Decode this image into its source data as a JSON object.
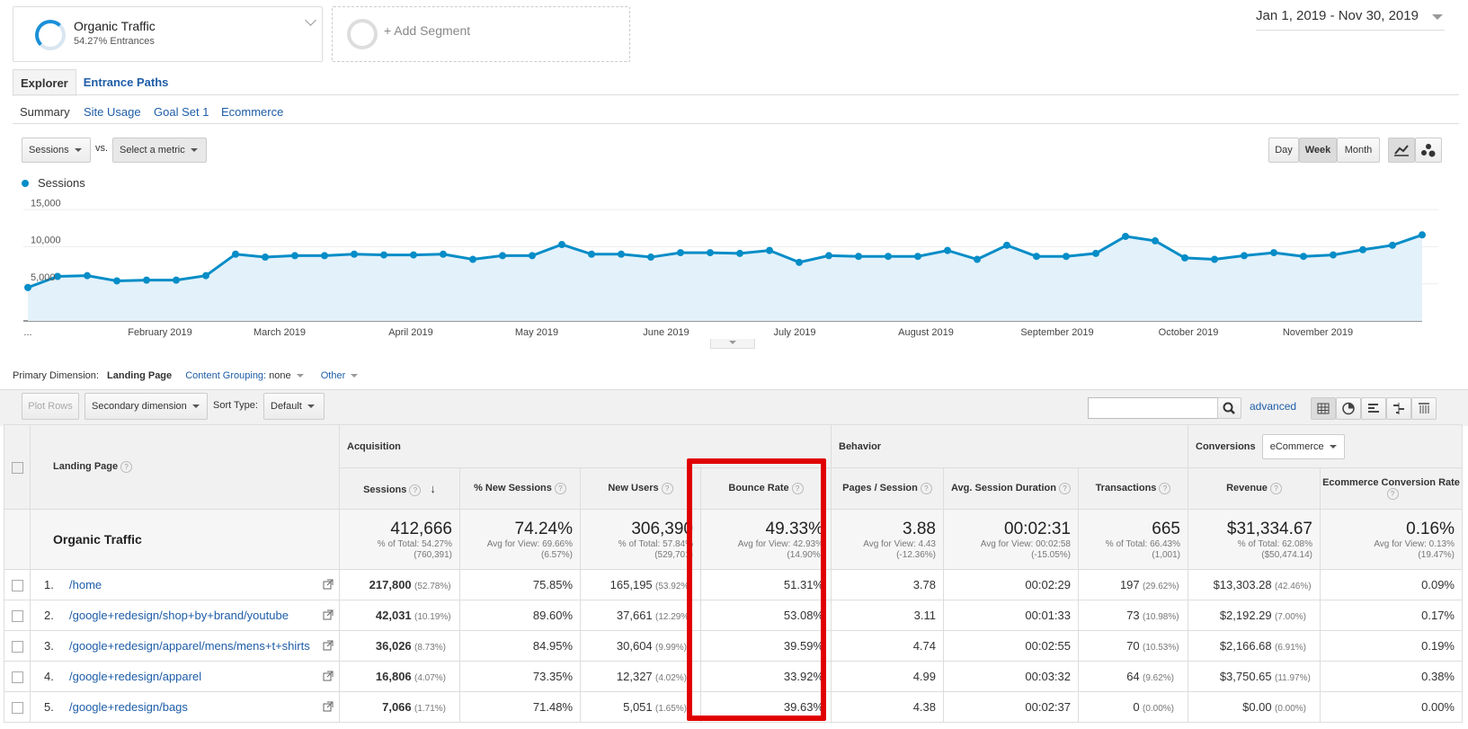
{
  "segments": {
    "primary": {
      "name": "Organic Traffic",
      "sub": "54.27% Entrances"
    },
    "add_label": "+ Add Segment"
  },
  "date_range": "Jan 1, 2019 - Nov 30, 2019",
  "tabs": [
    "Explorer",
    "Entrance Paths"
  ],
  "subtabs": [
    "Summary",
    "Site Usage",
    "Goal Set 1",
    "Ecommerce"
  ],
  "metric_select": {
    "primary": "Sessions",
    "vs": "vs.",
    "secondary": "Select a metric"
  },
  "granularity": [
    "Day",
    "Week",
    "Month"
  ],
  "chart_data": {
    "type": "area",
    "series": [
      {
        "name": "Sessions",
        "values": [
          4500,
          6000,
          6100,
          5400,
          5500,
          5500,
          6100,
          9000,
          8600,
          8800,
          8800,
          9000,
          8900,
          8900,
          9000,
          8300,
          8800,
          8800,
          10300,
          9000,
          9000,
          8600,
          9200,
          9200,
          9100,
          9500,
          7900,
          8800,
          8700,
          8700,
          8700,
          9500,
          8300,
          10200,
          8700,
          8700,
          9100,
          11400,
          10800,
          8500,
          8300,
          8800,
          9200,
          8700,
          8900,
          9600,
          10200,
          11600
        ]
      }
    ],
    "x_labels": [
      "...",
      "February 2019",
      "March 2019",
      "April 2019",
      "May 2019",
      "June 2019",
      "July 2019",
      "August 2019",
      "September 2019",
      "October 2019",
      "November 2019"
    ],
    "y_ticks": [
      "15,000",
      "10,000",
      "5,000"
    ],
    "ylim": [
      0,
      16000
    ],
    "color": "#058dc7"
  },
  "primary_dimension": {
    "label": "Primary Dimension:",
    "value": "Landing Page",
    "grouping": "Content Grouping:",
    "grouping_value": "none",
    "other": "Other"
  },
  "toolbar": {
    "plot_rows": "Plot Rows",
    "secondary": "Secondary dimension",
    "sort_label": "Sort Type:",
    "sort_value": "Default",
    "advanced": "advanced"
  },
  "table": {
    "dim_header": "Landing Page",
    "groups": {
      "acquisition": "Acquisition",
      "behavior": "Behavior",
      "conversions": "Conversions",
      "conv_select": "eCommerce"
    },
    "columns": [
      "Sessions",
      "% New Sessions",
      "New Users",
      "Bounce Rate",
      "Pages / Session",
      "Avg. Session Duration",
      "Transactions",
      "Revenue",
      "Ecommerce Conversion Rate"
    ],
    "totals": {
      "label": "Organic Traffic",
      "cells": [
        {
          "big": "412,666",
          "l1": "% of Total: 54.27%",
          "l2": "(760,391)"
        },
        {
          "big": "74.24%",
          "l1": "Avg for View: 69.66%",
          "l2": "(6.57%)"
        },
        {
          "big": "306,390",
          "l1": "% of Total: 57.84%",
          "l2": "(529,701)"
        },
        {
          "big": "49.33%",
          "l1": "Avg for View: 42.93%",
          "l2": "(14.90%)"
        },
        {
          "big": "3.88",
          "l1": "Avg for View: 4.43",
          "l2": "(-12.36%)"
        },
        {
          "big": "00:02:31",
          "l1": "Avg for View: 00:02:58",
          "l2": "(-15.05%)"
        },
        {
          "big": "665",
          "l1": "% of Total: 66.43%",
          "l2": "(1,001)"
        },
        {
          "big": "$31,334.67",
          "l1": "% of Total: 62.08%",
          "l2": "($50,474.14)"
        },
        {
          "big": "0.16%",
          "l1": "Avg for View: 0.13%",
          "l2": "(19.47%)"
        }
      ]
    },
    "rows": [
      {
        "n": "1.",
        "page": "/home",
        "sessions": "217,800",
        "sessions_pct": "(52.78%)",
        "new_sessions": "75.85%",
        "new_users": "165,195",
        "new_users_pct": "(53.92%)",
        "bounce": "51.31%",
        "pps": "3.78",
        "dur": "00:02:29",
        "trans": "197",
        "trans_pct": "(29.62%)",
        "rev": "$13,303.28",
        "rev_pct": "(42.46%)",
        "conv": "0.09%"
      },
      {
        "n": "2.",
        "page": "/google+redesign/shop+by+brand/youtube",
        "sessions": "42,031",
        "sessions_pct": "(10.19%)",
        "new_sessions": "89.60%",
        "new_users": "37,661",
        "new_users_pct": "(12.29%)",
        "bounce": "53.08%",
        "pps": "3.11",
        "dur": "00:01:33",
        "trans": "73",
        "trans_pct": "(10.98%)",
        "rev": "$2,192.29",
        "rev_pct": "(7.00%)",
        "conv": "0.17%"
      },
      {
        "n": "3.",
        "page": "/google+redesign/apparel/mens/mens+t+shirts",
        "sessions": "36,026",
        "sessions_pct": "(8.73%)",
        "new_sessions": "84.95%",
        "new_users": "30,604",
        "new_users_pct": "(9.99%)",
        "bounce": "39.59%",
        "pps": "4.74",
        "dur": "00:02:55",
        "trans": "70",
        "trans_pct": "(10.53%)",
        "rev": "$2,166.68",
        "rev_pct": "(6.91%)",
        "conv": "0.19%"
      },
      {
        "n": "4.",
        "page": "/google+redesign/apparel",
        "sessions": "16,806",
        "sessions_pct": "(4.07%)",
        "new_sessions": "73.35%",
        "new_users": "12,327",
        "new_users_pct": "(4.02%)",
        "bounce": "33.92%",
        "pps": "4.99",
        "dur": "00:03:32",
        "trans": "64",
        "trans_pct": "(9.62%)",
        "rev": "$3,750.65",
        "rev_pct": "(11.97%)",
        "conv": "0.38%"
      },
      {
        "n": "5.",
        "page": "/google+redesign/bags",
        "sessions": "7,066",
        "sessions_pct": "(1.71%)",
        "new_sessions": "71.48%",
        "new_users": "5,051",
        "new_users_pct": "(1.65%)",
        "bounce": "39.63%",
        "pps": "4.38",
        "dur": "00:02:37",
        "trans": "0",
        "trans_pct": "(0.00%)",
        "rev": "$0.00",
        "rev_pct": "(0.00%)",
        "conv": "0.00%"
      }
    ]
  },
  "highlight_color": "#e00000"
}
